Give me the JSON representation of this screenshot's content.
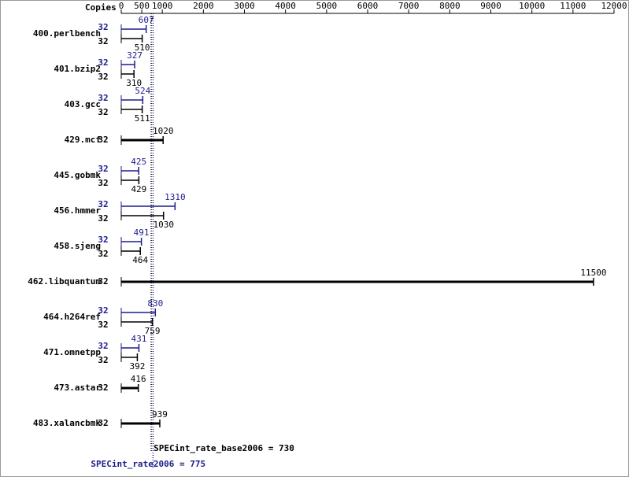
{
  "chart_data": {
    "type": "bar",
    "orientation": "horizontal",
    "copies_header": "Copies",
    "categories": [
      "400.perlbench",
      "401.bzip2",
      "403.gcc",
      "429.mcf",
      "445.gobmk",
      "456.hmmer",
      "458.sjeng",
      "462.libquantum",
      "464.h264ref",
      "471.omnetpp",
      "473.astar",
      "483.xalancbmk"
    ],
    "series": [
      {
        "name": "SPECint_rate2006",
        "color": "#1c1c8c",
        "copies": [
          32,
          32,
          32,
          null,
          32,
          32,
          32,
          null,
          32,
          32,
          null,
          null
        ],
        "values": [
          607,
          327,
          524,
          null,
          425,
          1310,
          491,
          null,
          830,
          431,
          null,
          null
        ]
      },
      {
        "name": "SPECint_rate_base2006",
        "color": "#000000",
        "copies": [
          32,
          32,
          32,
          32,
          32,
          32,
          32,
          32,
          32,
          32,
          32,
          32
        ],
        "values": [
          510,
          310,
          511,
          1020,
          429,
          1030,
          464,
          11500,
          759,
          392,
          416,
          939
        ]
      }
    ],
    "xlim": [
      0,
      12000
    ],
    "xticks": [
      0,
      500,
      1000,
      2000,
      3000,
      4000,
      5000,
      6000,
      7000,
      8000,
      9000,
      10000,
      11000,
      12000
    ],
    "reference_lines": [
      {
        "text": "SPECint_rate_base2006 = 730",
        "value": 730,
        "color": "#000000"
      },
      {
        "text": "SPECint_rate2006 = 775",
        "value": 775,
        "color": "#1c1c8c"
      }
    ]
  }
}
